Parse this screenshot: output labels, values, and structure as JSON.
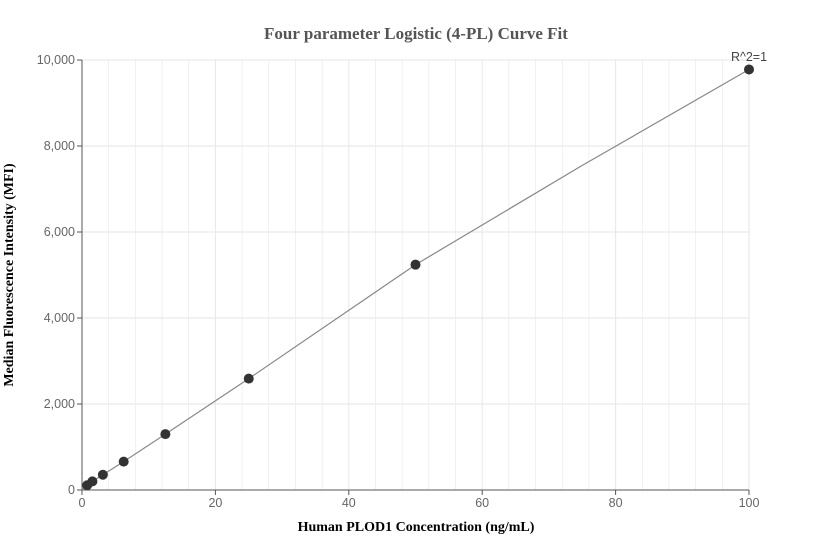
{
  "chart_data": {
    "type": "scatter",
    "title": "Four parameter Logistic (4-PL) Curve Fit",
    "xlabel": "Human PLOD1 Concentration (ng/mL)",
    "ylabel": "Median Fluorescence Intensity (MFI)",
    "xlim": [
      0,
      100
    ],
    "ylim": [
      0,
      10000
    ],
    "x_ticks": [
      0,
      20,
      40,
      60,
      80,
      100
    ],
    "y_ticks": [
      0,
      2000,
      4000,
      6000,
      8000,
      10000
    ],
    "x_tick_labels": [
      "0",
      "20",
      "40",
      "60",
      "80",
      "100"
    ],
    "y_tick_labels": [
      "0",
      "2,000",
      "4,000",
      "6,000",
      "8,000",
      "10,000"
    ],
    "grid": true,
    "annotation": "R^2=1",
    "points": [
      {
        "x": 0.78,
        "y": 110
      },
      {
        "x": 1.56,
        "y": 200
      },
      {
        "x": 3.13,
        "y": 355
      },
      {
        "x": 6.25,
        "y": 660
      },
      {
        "x": 12.5,
        "y": 1300
      },
      {
        "x": 25,
        "y": 2590
      },
      {
        "x": 50,
        "y": 5240
      },
      {
        "x": 100,
        "y": 9780
      }
    ],
    "fit_curve": {
      "x": [
        0,
        0.78,
        1.56,
        3.13,
        6.25,
        12.5,
        25,
        50,
        75,
        100
      ],
      "y": [
        0,
        110,
        200,
        355,
        660,
        1300,
        2590,
        5240,
        7550,
        9780
      ]
    },
    "colors": {
      "marker": "#333333",
      "curve": "#888888",
      "grid": "#e6e6ee",
      "axis": "#555555"
    }
  }
}
